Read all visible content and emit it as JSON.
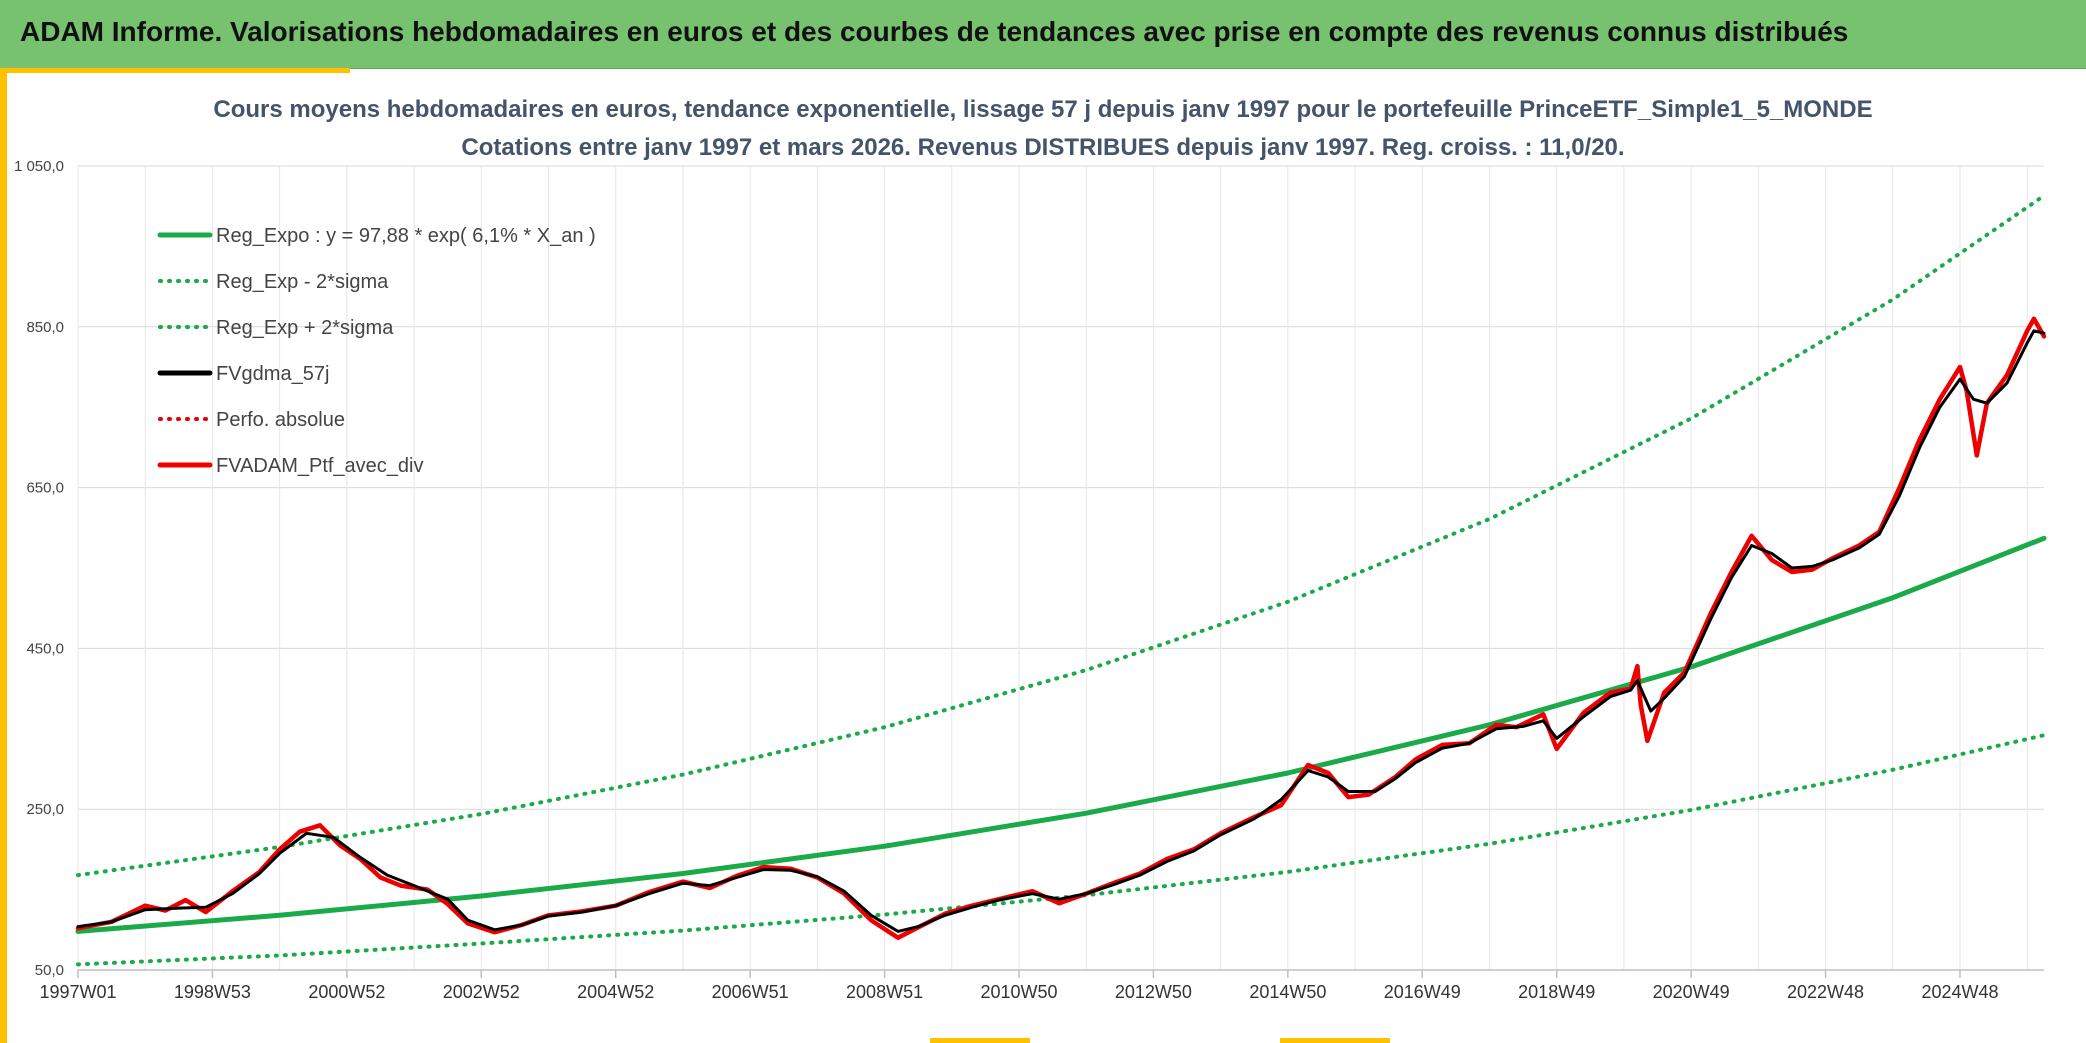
{
  "header": {
    "title": "ADAM Informe. Valorisations hebdomadaires en euros et des courbes de tendances avec prise en compte des revenus connus distribués"
  },
  "colors": {
    "header_bg": "#77c26e",
    "accent": "#ffc000",
    "green": "#1aaa4a",
    "black": "#000000",
    "red": "#ee0000",
    "grid": "#d9d9d9"
  },
  "chart_data": {
    "type": "line",
    "title_line1": "Cours moyens hebdomadaires en euros, tendance exponentielle, lissage 57 j depuis janv 1997 pour le portefeuille PrinceETF_Simple1_5_MONDE",
    "title_line2": "Cotations entre janv 1997 et mars 2026. Revenus DISTRIBUES depuis janv 1997. Reg. croiss. : 11,0/20.",
    "xlim": [
      1997.0,
      2026.25
    ],
    "ylim": [
      50,
      1050
    ],
    "yticks": [
      {
        "v": 50,
        "label": "50,0"
      },
      {
        "v": 250,
        "label": "250,0"
      },
      {
        "v": 450,
        "label": "450,0"
      },
      {
        "v": 650,
        "label": "650,0"
      },
      {
        "v": 850,
        "label": "850,0"
      },
      {
        "v": 1050,
        "label": "1 050,0"
      }
    ],
    "xticks": [
      {
        "t": 1997.0,
        "label": "1997W01"
      },
      {
        "t": 1999.0,
        "label": "1998W53"
      },
      {
        "t": 2001.0,
        "label": "2000W52"
      },
      {
        "t": 2003.0,
        "label": "2002W52"
      },
      {
        "t": 2005.0,
        "label": "2004W52"
      },
      {
        "t": 2007.0,
        "label": "2006W51"
      },
      {
        "t": 2009.0,
        "label": "2008W51"
      },
      {
        "t": 2011.0,
        "label": "2010W50"
      },
      {
        "t": 2013.0,
        "label": "2012W50"
      },
      {
        "t": 2015.0,
        "label": "2014W50"
      },
      {
        "t": 2017.0,
        "label": "2016W49"
      },
      {
        "t": 2019.0,
        "label": "2018W49"
      },
      {
        "t": 2021.0,
        "label": "2020W49"
      },
      {
        "t": 2023.0,
        "label": "2022W48"
      },
      {
        "t": 2025.0,
        "label": "2024W48"
      }
    ],
    "legend": [
      {
        "key": "reg",
        "label": "Reg_Expo : y = 97,88 * exp( 6,1% *  X_an )",
        "color": "#1aaa4a",
        "style": "solid"
      },
      {
        "key": "low",
        "label": "Reg_Exp - 2*sigma",
        "color": "#1aaa4a",
        "style": "dotted"
      },
      {
        "key": "high",
        "label": "Reg_Exp + 2*sigma",
        "color": "#1aaa4a",
        "style": "dotted"
      },
      {
        "key": "smooth",
        "label": "FVgdma_57j",
        "color": "#000000",
        "style": "solid"
      },
      {
        "key": "perf",
        "label": "Perfo. absolue",
        "color": "#ee0000",
        "style": "dotted"
      },
      {
        "key": "ptf",
        "label": "FVADAM_Ptf_avec_div",
        "color": "#ee0000",
        "style": "solid"
      }
    ],
    "series": [
      {
        "name": "Reg_Expo",
        "points": [
          [
            1997.0,
            98
          ],
          [
            2000.0,
            118
          ],
          [
            2003.0,
            142
          ],
          [
            2006.0,
            170
          ],
          [
            2009.0,
            204
          ],
          [
            2012.0,
            245
          ],
          [
            2015.0,
            295
          ],
          [
            2018.0,
            355
          ],
          [
            2021.0,
            427
          ],
          [
            2024.0,
            513
          ],
          [
            2026.25,
            587
          ]
        ]
      },
      {
        "name": "Reg_Exp - 2*sigma",
        "points": [
          [
            1997.0,
            57
          ],
          [
            2000.0,
            68
          ],
          [
            2003.0,
            83
          ],
          [
            2006.0,
            99
          ],
          [
            2009.0,
            119
          ],
          [
            2012.0,
            143
          ],
          [
            2015.0,
            172
          ],
          [
            2018.0,
            207
          ],
          [
            2021.0,
            249
          ],
          [
            2024.0,
            299
          ],
          [
            2026.25,
            342
          ]
        ]
      },
      {
        "name": "Reg_Exp + 2*sigma",
        "points": [
          [
            1997.0,
            168
          ],
          [
            2000.0,
            203
          ],
          [
            2003.0,
            244
          ],
          [
            2006.0,
            293
          ],
          [
            2009.0,
            352
          ],
          [
            2012.0,
            423
          ],
          [
            2015.0,
            508
          ],
          [
            2018.0,
            611
          ],
          [
            2021.0,
            736
          ],
          [
            2024.0,
            884
          ],
          [
            2026.25,
            1013
          ]
        ]
      },
      {
        "name": "FVADAM_Ptf_avec_div",
        "points": [
          [
            1997.0,
            102
          ],
          [
            1997.5,
            110
          ],
          [
            1998.0,
            130
          ],
          [
            1998.3,
            124
          ],
          [
            1998.6,
            137
          ],
          [
            1998.9,
            122
          ],
          [
            1999.3,
            148
          ],
          [
            1999.7,
            172
          ],
          [
            2000.0,
            200
          ],
          [
            2000.3,
            222
          ],
          [
            2000.6,
            230
          ],
          [
            2000.9,
            205
          ],
          [
            2001.2,
            188
          ],
          [
            2001.5,
            165
          ],
          [
            2001.8,
            155
          ],
          [
            2002.2,
            150
          ],
          [
            2002.5,
            132
          ],
          [
            2002.8,
            108
          ],
          [
            2003.2,
            97
          ],
          [
            2003.6,
            106
          ],
          [
            2004.0,
            118
          ],
          [
            2004.5,
            123
          ],
          [
            2005.0,
            130
          ],
          [
            2005.5,
            147
          ],
          [
            2006.0,
            160
          ],
          [
            2006.4,
            152
          ],
          [
            2006.8,
            167
          ],
          [
            2007.2,
            178
          ],
          [
            2007.6,
            176
          ],
          [
            2008.0,
            165
          ],
          [
            2008.4,
            145
          ],
          [
            2008.8,
            112
          ],
          [
            2009.2,
            90
          ],
          [
            2009.5,
            103
          ],
          [
            2009.9,
            120
          ],
          [
            2010.3,
            130
          ],
          [
            2010.7,
            138
          ],
          [
            2011.2,
            148
          ],
          [
            2011.6,
            133
          ],
          [
            2012.0,
            145
          ],
          [
            2012.4,
            158
          ],
          [
            2012.8,
            170
          ],
          [
            2013.2,
            188
          ],
          [
            2013.6,
            200
          ],
          [
            2014.0,
            220
          ],
          [
            2014.5,
            240
          ],
          [
            2014.9,
            255
          ],
          [
            2015.3,
            305
          ],
          [
            2015.6,
            295
          ],
          [
            2015.9,
            265
          ],
          [
            2016.2,
            268
          ],
          [
            2016.6,
            290
          ],
          [
            2016.9,
            312
          ],
          [
            2017.3,
            330
          ],
          [
            2017.7,
            332
          ],
          [
            2018.1,
            355
          ],
          [
            2018.4,
            352
          ],
          [
            2018.8,
            368
          ],
          [
            2019.0,
            325
          ],
          [
            2019.4,
            370
          ],
          [
            2019.8,
            395
          ],
          [
            2020.1,
            400
          ],
          [
            2020.2,
            428
          ],
          [
            2020.25,
            380
          ],
          [
            2020.35,
            335
          ],
          [
            2020.6,
            395
          ],
          [
            2020.9,
            420
          ],
          [
            2021.3,
            495
          ],
          [
            2021.6,
            545
          ],
          [
            2021.9,
            590
          ],
          [
            2022.2,
            560
          ],
          [
            2022.5,
            545
          ],
          [
            2022.8,
            548
          ],
          [
            2023.1,
            562
          ],
          [
            2023.5,
            578
          ],
          [
            2023.8,
            595
          ],
          [
            2024.1,
            650
          ],
          [
            2024.4,
            710
          ],
          [
            2024.7,
            760
          ],
          [
            2025.0,
            800
          ],
          [
            2025.1,
            770
          ],
          [
            2025.25,
            690
          ],
          [
            2025.4,
            755
          ],
          [
            2025.7,
            790
          ],
          [
            2026.0,
            845
          ],
          [
            2026.1,
            860
          ],
          [
            2026.25,
            838
          ]
        ]
      },
      {
        "name": "FVgdma_57j",
        "points": [
          [
            1997.0,
            104
          ],
          [
            1997.5,
            110
          ],
          [
            1998.0,
            125
          ],
          [
            1998.5,
            127
          ],
          [
            1998.9,
            128
          ],
          [
            1999.3,
            145
          ],
          [
            1999.7,
            170
          ],
          [
            2000.0,
            195
          ],
          [
            2000.4,
            220
          ],
          [
            2000.8,
            215
          ],
          [
            2001.2,
            190
          ],
          [
            2001.6,
            168
          ],
          [
            2002.0,
            155
          ],
          [
            2002.5,
            138
          ],
          [
            2002.8,
            112
          ],
          [
            2003.2,
            100
          ],
          [
            2003.6,
            106
          ],
          [
            2004.0,
            117
          ],
          [
            2004.5,
            122
          ],
          [
            2005.0,
            130
          ],
          [
            2005.5,
            145
          ],
          [
            2006.0,
            158
          ],
          [
            2006.4,
            155
          ],
          [
            2006.8,
            165
          ],
          [
            2007.2,
            175
          ],
          [
            2007.6,
            174
          ],
          [
            2008.0,
            166
          ],
          [
            2008.4,
            148
          ],
          [
            2008.8,
            118
          ],
          [
            2009.2,
            98
          ],
          [
            2009.5,
            104
          ],
          [
            2009.9,
            118
          ],
          [
            2010.3,
            128
          ],
          [
            2010.7,
            137
          ],
          [
            2011.2,
            145
          ],
          [
            2011.6,
            138
          ],
          [
            2012.0,
            145
          ],
          [
            2012.4,
            156
          ],
          [
            2012.8,
            168
          ],
          [
            2013.2,
            185
          ],
          [
            2013.6,
            198
          ],
          [
            2014.0,
            218
          ],
          [
            2014.5,
            238
          ],
          [
            2014.9,
            262
          ],
          [
            2015.3,
            298
          ],
          [
            2015.6,
            290
          ],
          [
            2015.9,
            272
          ],
          [
            2016.3,
            272
          ],
          [
            2016.6,
            288
          ],
          [
            2016.9,
            308
          ],
          [
            2017.3,
            326
          ],
          [
            2017.7,
            332
          ],
          [
            2018.1,
            350
          ],
          [
            2018.5,
            353
          ],
          [
            2018.8,
            360
          ],
          [
            2019.0,
            338
          ],
          [
            2019.4,
            365
          ],
          [
            2019.8,
            390
          ],
          [
            2020.1,
            398
          ],
          [
            2020.2,
            410
          ],
          [
            2020.4,
            372
          ],
          [
            2020.6,
            388
          ],
          [
            2020.9,
            415
          ],
          [
            2021.3,
            488
          ],
          [
            2021.6,
            538
          ],
          [
            2021.9,
            578
          ],
          [
            2022.2,
            568
          ],
          [
            2022.5,
            550
          ],
          [
            2022.8,
            552
          ],
          [
            2023.1,
            560
          ],
          [
            2023.5,
            575
          ],
          [
            2023.8,
            592
          ],
          [
            2024.1,
            640
          ],
          [
            2024.4,
            700
          ],
          [
            2024.7,
            750
          ],
          [
            2025.0,
            785
          ],
          [
            2025.2,
            760
          ],
          [
            2025.4,
            755
          ],
          [
            2025.7,
            780
          ],
          [
            2026.0,
            830
          ],
          [
            2026.1,
            845
          ],
          [
            2026.25,
            842
          ]
        ]
      }
    ]
  }
}
